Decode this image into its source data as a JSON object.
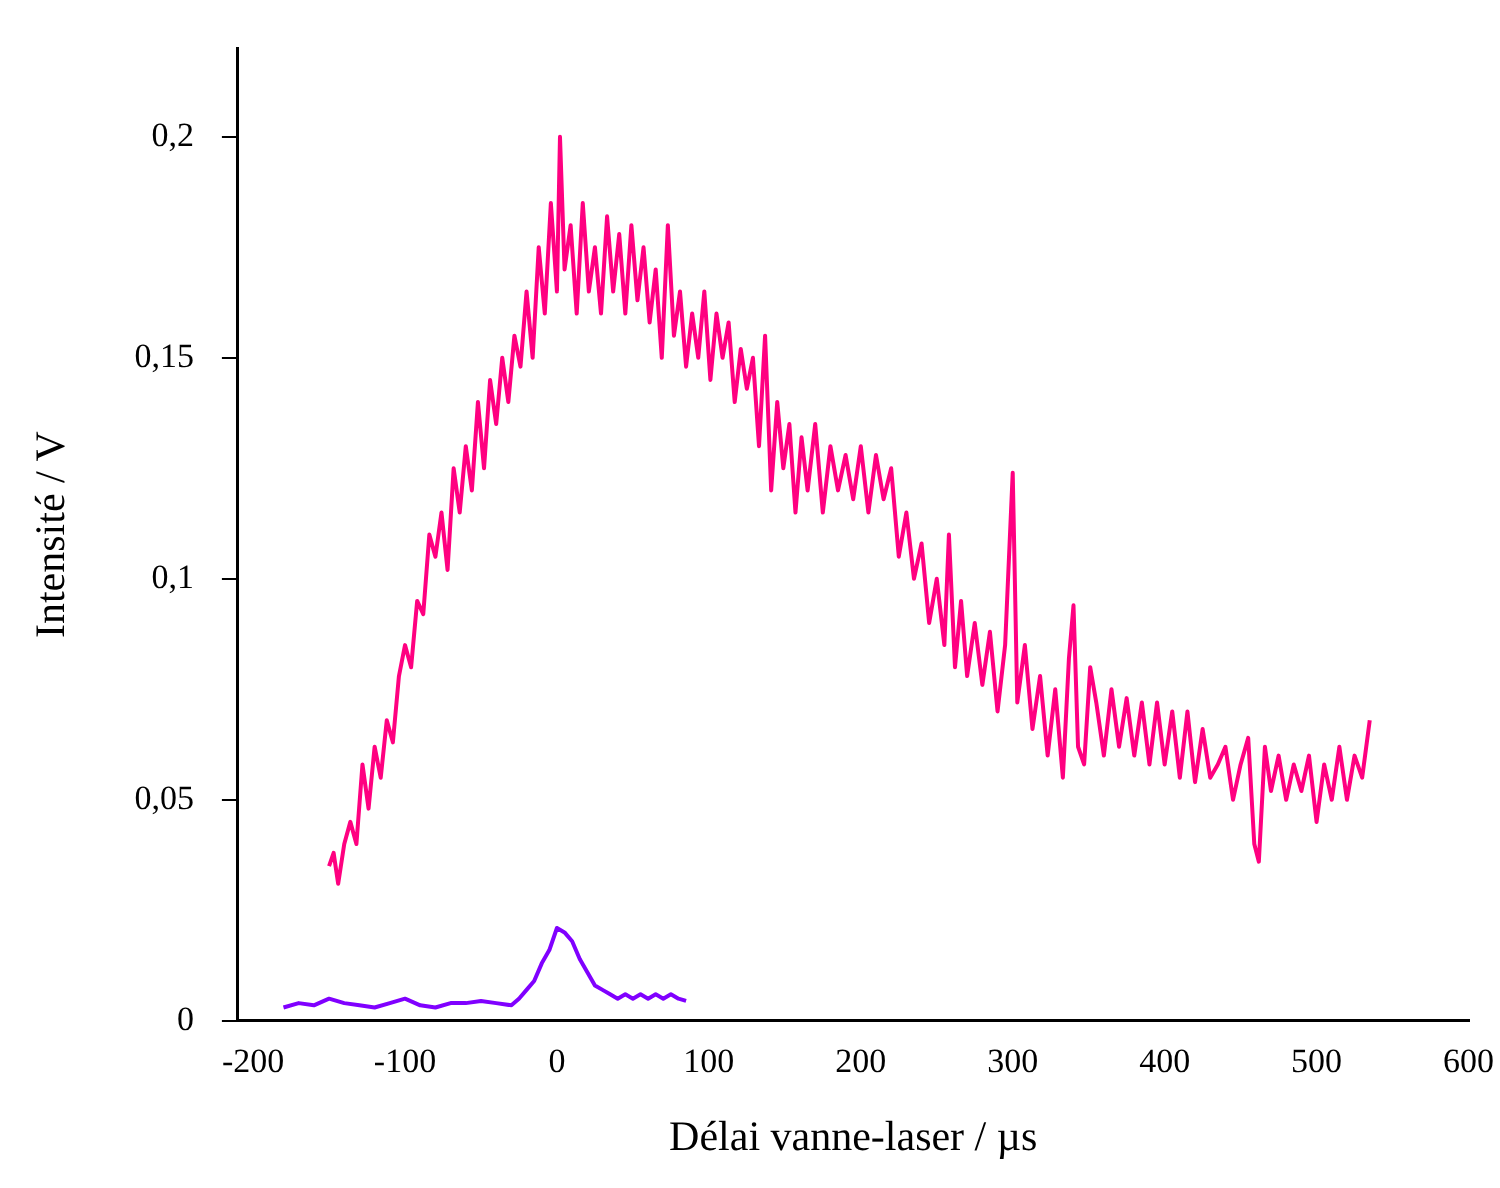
{
  "chart_data": {
    "type": "line",
    "xlabel": "Délai vanne-laser / µs",
    "ylabel": "Intensité / V",
    "xlim": [
      -210,
      600
    ],
    "xticks": [
      -200,
      -100,
      0,
      100,
      200,
      300,
      400,
      500,
      600
    ],
    "ylim": [
      0,
      0.22
    ],
    "yticks": [
      0,
      {
        "value": 0.05,
        "label": "0,05"
      },
      {
        "value": 0.1,
        "label": "0,1"
      },
      {
        "value": 0.15,
        "label": "0,15"
      },
      {
        "value": 0.2,
        "label": "0,2"
      }
    ],
    "grid": false,
    "legend": false,
    "marker": "none",
    "line_style": "solid",
    "series": [
      {
        "color": "#ff0080",
        "x": [
          -150,
          -147,
          -144,
          -140,
          -136,
          -132,
          -128,
          -124,
          -120,
          -116,
          -112,
          -108,
          -104,
          -100,
          -96,
          -92,
          -88,
          -84,
          -80,
          -76,
          -72,
          -68,
          -64,
          -60,
          -56,
          -52,
          -48,
          -44,
          -40,
          -36,
          -32,
          -28,
          -24,
          -20,
          -16,
          -12,
          -8,
          -4,
          0,
          2,
          5,
          9,
          13,
          17,
          21,
          25,
          29,
          33,
          37,
          41,
          45,
          49,
          53,
          57,
          61,
          65,
          69,
          73,
          77,
          81,
          85,
          89,
          93,
          97,
          101,
          105,
          109,
          113,
          117,
          121,
          125,
          129,
          133,
          137,
          141,
          145,
          149,
          153,
          157,
          161,
          165,
          170,
          175,
          180,
          185,
          190,
          195,
          200,
          205,
          210,
          215,
          220,
          225,
          230,
          235,
          240,
          245,
          250,
          255,
          258,
          262,
          266,
          270,
          275,
          280,
          285,
          290,
          295,
          300,
          303,
          308,
          313,
          318,
          323,
          328,
          333,
          337,
          340,
          343,
          347,
          351,
          355,
          360,
          365,
          370,
          375,
          380,
          385,
          390,
          395,
          400,
          405,
          410,
          415,
          420,
          425,
          430,
          435,
          440,
          445,
          450,
          455,
          459,
          462,
          466,
          470,
          475,
          480,
          485,
          490,
          495,
          500,
          505,
          510,
          515,
          520,
          525,
          530,
          535
        ],
        "values": [
          0.035,
          0.038,
          0.031,
          0.04,
          0.045,
          0.04,
          0.058,
          0.048,
          0.062,
          0.055,
          0.068,
          0.063,
          0.078,
          0.085,
          0.08,
          0.095,
          0.092,
          0.11,
          0.105,
          0.115,
          0.102,
          0.125,
          0.115,
          0.13,
          0.12,
          0.14,
          0.125,
          0.145,
          0.135,
          0.15,
          0.14,
          0.155,
          0.148,
          0.165,
          0.15,
          0.175,
          0.16,
          0.185,
          0.165,
          0.2,
          0.17,
          0.18,
          0.16,
          0.185,
          0.165,
          0.175,
          0.16,
          0.182,
          0.165,
          0.178,
          0.16,
          0.18,
          0.163,
          0.175,
          0.158,
          0.17,
          0.15,
          0.18,
          0.155,
          0.165,
          0.148,
          0.16,
          0.15,
          0.165,
          0.145,
          0.16,
          0.15,
          0.158,
          0.14,
          0.152,
          0.143,
          0.15,
          0.13,
          0.155,
          0.12,
          0.14,
          0.125,
          0.135,
          0.115,
          0.132,
          0.12,
          0.135,
          0.115,
          0.13,
          0.12,
          0.128,
          0.118,
          0.13,
          0.115,
          0.128,
          0.118,
          0.125,
          0.105,
          0.115,
          0.1,
          0.108,
          0.09,
          0.1,
          0.085,
          0.11,
          0.08,
          0.095,
          0.078,
          0.09,
          0.076,
          0.088,
          0.07,
          0.085,
          0.124,
          0.072,
          0.085,
          0.066,
          0.078,
          0.06,
          0.075,
          0.055,
          0.082,
          0.094,
          0.062,
          0.058,
          0.08,
          0.072,
          0.06,
          0.075,
          0.062,
          0.073,
          0.06,
          0.072,
          0.058,
          0.072,
          0.058,
          0.07,
          0.055,
          0.07,
          0.054,
          0.066,
          0.055,
          0.058,
          0.062,
          0.05,
          0.058,
          0.064,
          0.04,
          0.036,
          0.062,
          0.052,
          0.06,
          0.05,
          0.058,
          0.052,
          0.06,
          0.045,
          0.058,
          0.05,
          0.062,
          0.05,
          0.06,
          0.055,
          0.068
        ]
      },
      {
        "color": "#8000ff",
        "x": [
          -180,
          -170,
          -160,
          -150,
          -140,
          -130,
          -120,
          -110,
          -100,
          -90,
          -80,
          -70,
          -60,
          -50,
          -40,
          -30,
          -25,
          -20,
          -15,
          -10,
          -5,
          0,
          5,
          10,
          15,
          20,
          25,
          30,
          35,
          40,
          45,
          50,
          55,
          60,
          65,
          70,
          75,
          80,
          85
        ],
        "values": [
          0.003,
          0.004,
          0.0035,
          0.005,
          0.004,
          0.0035,
          0.003,
          0.004,
          0.005,
          0.0035,
          0.003,
          0.004,
          0.004,
          0.0045,
          0.004,
          0.0035,
          0.005,
          0.007,
          0.009,
          0.013,
          0.016,
          0.021,
          0.02,
          0.018,
          0.014,
          0.011,
          0.008,
          0.007,
          0.006,
          0.005,
          0.006,
          0.005,
          0.006,
          0.005,
          0.006,
          0.005,
          0.006,
          0.005,
          0.0045
        ]
      }
    ]
  }
}
